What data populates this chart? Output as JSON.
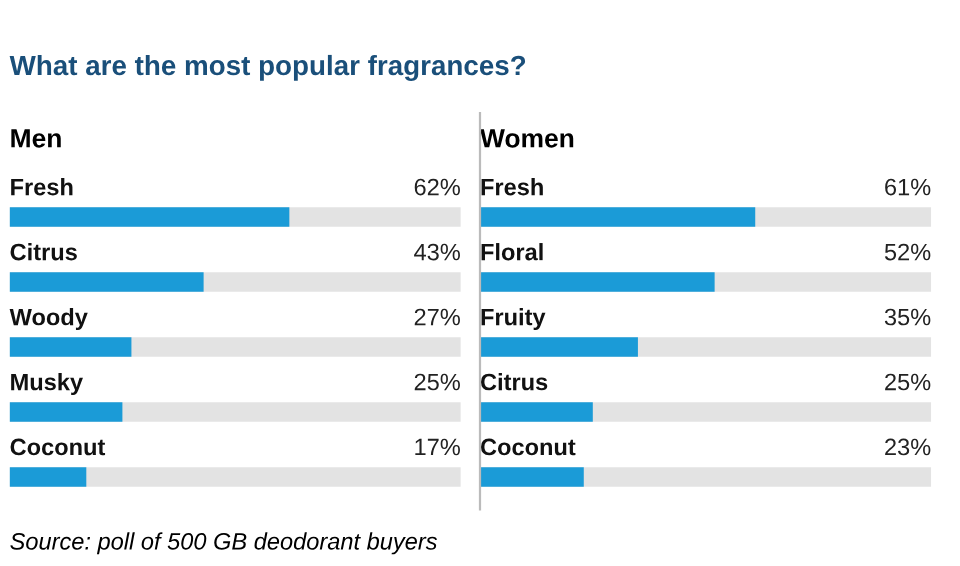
{
  "chart_data": [
    {
      "type": "bar",
      "orientation": "horizontal",
      "title": "What are the most popular fragrances?",
      "subtitle": "Men",
      "categories": [
        "Fresh",
        "Citrus",
        "Woody",
        "Musky",
        "Coconut"
      ],
      "values": [
        62,
        43,
        27,
        25,
        17
      ],
      "value_labels": [
        "62%",
        "43%",
        "27%",
        "25%",
        "17%"
      ],
      "color": "#1b9bd7",
      "xlim": [
        0,
        100
      ],
      "tick_labels": false
    },
    {
      "type": "bar",
      "orientation": "horizontal",
      "subtitle": "Women",
      "categories": [
        "Fresh",
        "Floral",
        "Fruity",
        "Citrus",
        "Coconut"
      ],
      "values": [
        61,
        52,
        35,
        25,
        23
      ],
      "value_labels": [
        "61%",
        "52%",
        "35%",
        "25%",
        "23%"
      ],
      "color": "#1b9bd7",
      "xlim": [
        0,
        100
      ],
      "tick_labels": false,
      "annotations": [
        "Source: poll of 500 GB deodorant buyers"
      ]
    }
  ]
}
